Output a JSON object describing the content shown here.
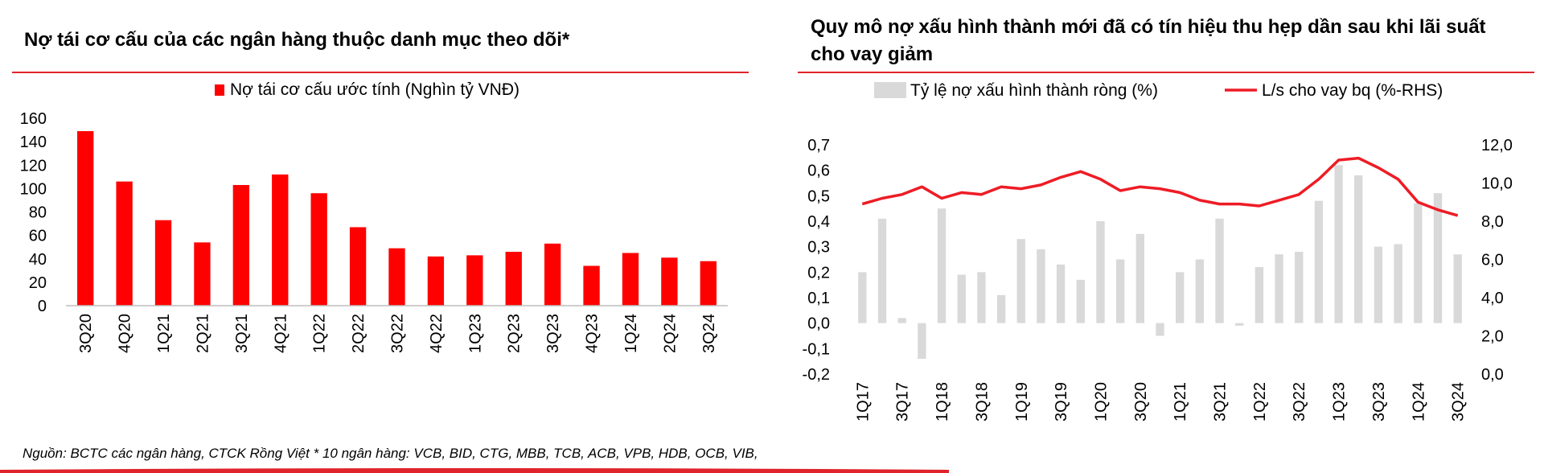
{
  "left_title": "Nợ tái cơ cấu của các ngân hàng thuộc danh mục theo dõi*",
  "right_title": "Quy mô nợ xấu hình thành mới đã có tín hiệu thu hẹp dần sau khi lãi suất cho vay giảm",
  "source_note": "Nguồn: BCTC các ngân hàng, CTCK Rồng Việt * 10 ngân hàng: VCB, BID, CTG, MBB, TCB, ACB, VPB, HDB, OCB, VIB,",
  "colors": {
    "accent_red": "#ff0000",
    "rule_red": "#e0242b",
    "bar_gray": "#d9d9d9",
    "line_red": "#ee1c25"
  },
  "chart_data": [
    {
      "type": "bar",
      "title": "Nợ tái cơ cấu của các ngân hàng thuộc danh mục theo dõi*",
      "legend_position": "top-center",
      "grid": false,
      "categories": [
        "3Q20",
        "4Q20",
        "1Q21",
        "2Q21",
        "3Q21",
        "4Q21",
        "1Q22",
        "2Q22",
        "3Q22",
        "4Q22",
        "1Q23",
        "2Q23",
        "3Q23",
        "4Q23",
        "1Q24",
        "2Q24",
        "3Q24"
      ],
      "series": [
        {
          "name": "Nợ tái cơ cấu ước tính (Nghìn tỷ VNĐ)",
          "color": "#ff0000",
          "values": [
            149,
            106,
            73,
            54,
            103,
            112,
            96,
            67,
            49,
            42,
            43,
            46,
            53,
            34,
            45,
            41,
            38
          ]
        }
      ],
      "ylim": [
        0,
        160
      ],
      "yticks": [
        "0",
        "20",
        "40",
        "60",
        "80",
        "100",
        "120",
        "140",
        "160"
      ]
    },
    {
      "type": "bar",
      "title": "Quy mô nợ xấu hình thành mới đã có tín hiệu thu hẹp dần sau khi lãi suất cho vay giảm",
      "legend_position": "top-center",
      "grid": false,
      "categories": [
        "1Q17",
        "2Q17",
        "3Q17",
        "4Q17",
        "1Q18",
        "2Q18",
        "3Q18",
        "4Q18",
        "1Q19",
        "2Q19",
        "3Q19",
        "4Q19",
        "1Q20",
        "2Q20",
        "3Q20",
        "4Q20",
        "1Q21",
        "2Q21",
        "3Q21",
        "4Q21",
        "1Q22",
        "2Q22",
        "3Q22",
        "4Q22",
        "1Q23",
        "2Q23",
        "3Q23",
        "4Q23",
        "1Q24",
        "2Q24",
        "3Q24"
      ],
      "category_labels_shown": [
        "1Q17",
        "3Q17",
        "1Q18",
        "3Q18",
        "1Q19",
        "3Q19",
        "1Q20",
        "3Q20",
        "1Q21",
        "3Q21",
        "1Q22",
        "3Q22",
        "1Q23",
        "3Q23",
        "1Q24",
        "3Q24"
      ],
      "series": [
        {
          "name": "Tỷ lệ nợ xấu hình thành ròng (%)",
          "type": "bar",
          "axis": "left",
          "color": "#d9d9d9",
          "values": [
            0.2,
            0.41,
            0.02,
            -0.14,
            0.45,
            0.19,
            0.2,
            0.11,
            0.33,
            0.29,
            0.23,
            0.17,
            0.4,
            0.25,
            0.35,
            -0.05,
            0.2,
            0.25,
            0.41,
            -0.01,
            0.22,
            0.27,
            0.28,
            0.48,
            0.62,
            0.58,
            0.3,
            0.31,
            0.47,
            0.51,
            0.27
          ]
        },
        {
          "name": "L/s cho vay bq (%-RHS)",
          "type": "line",
          "axis": "right",
          "color": "#ee1c25",
          "values": [
            8.9,
            9.2,
            9.4,
            9.8,
            9.2,
            9.5,
            9.4,
            9.8,
            9.7,
            9.9,
            10.3,
            10.6,
            10.2,
            9.6,
            9.8,
            9.7,
            9.5,
            9.1,
            8.9,
            8.9,
            8.8,
            9.1,
            9.4,
            10.2,
            11.2,
            11.3,
            10.8,
            10.2,
            9.0,
            8.6,
            8.3
          ]
        }
      ],
      "ylim": [
        -0.2,
        0.7
      ],
      "y2lim": [
        0,
        12
      ],
      "yticks": [
        "-0,2",
        "-0,1",
        "0,0",
        "0,1",
        "0,2",
        "0,3",
        "0,4",
        "0,5",
        "0,6",
        "0,7"
      ],
      "y2ticks": [
        "0,0",
        "2,0",
        "4,0",
        "6,0",
        "8,0",
        "10,0",
        "12,0"
      ]
    }
  ]
}
